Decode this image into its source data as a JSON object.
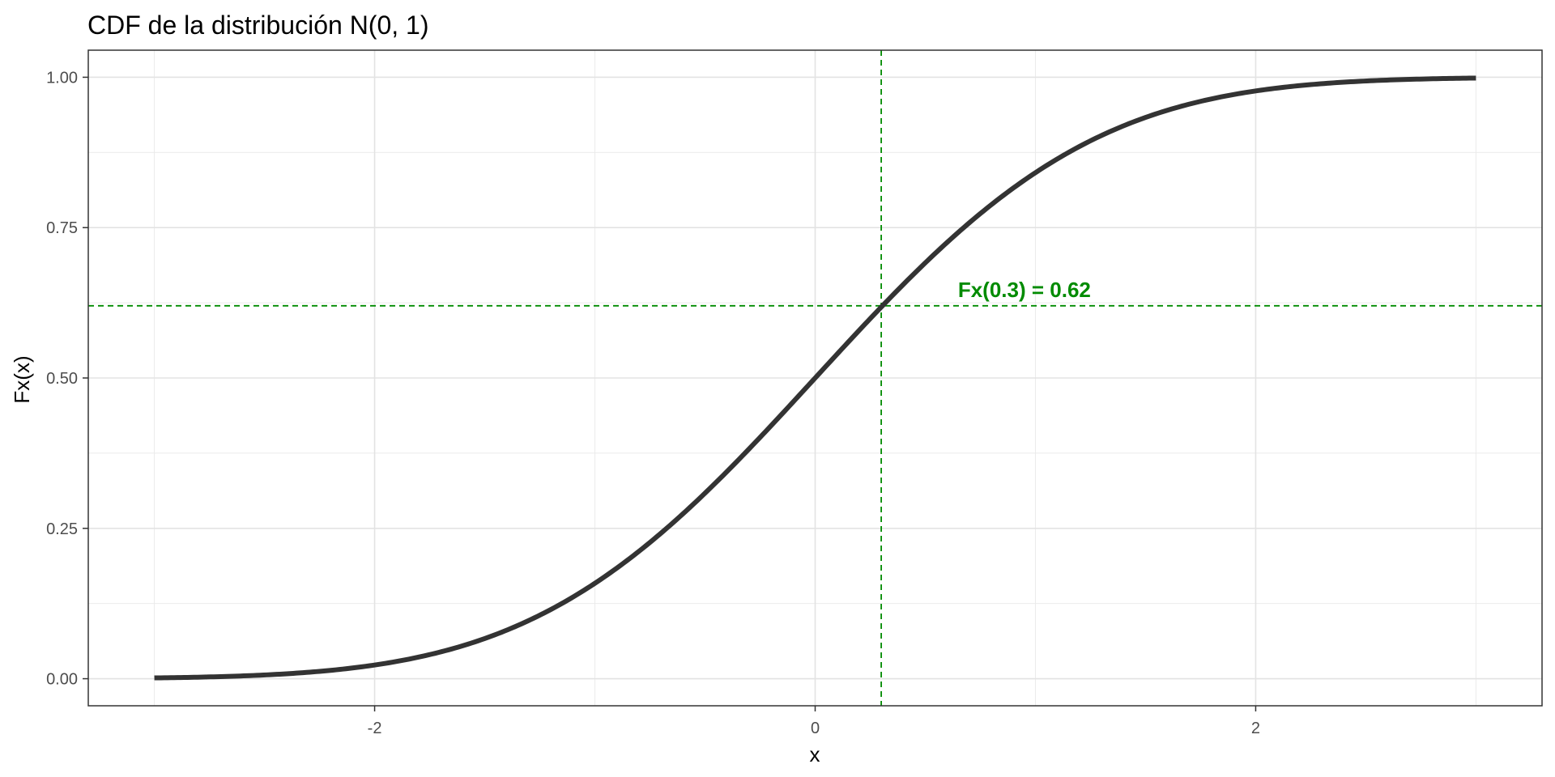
{
  "chart_data": {
    "type": "line",
    "title": "CDF de la distribución N(0, 1)",
    "xlabel": "x",
    "ylabel": "Fx(x)",
    "xlim": [
      -3.3,
      3.3
    ],
    "ylim": [
      -0.045,
      1.045
    ],
    "x_ticks": [
      -2,
      0,
      2
    ],
    "x_tick_labels": [
      "-2",
      "0",
      "2"
    ],
    "y_ticks": [
      0,
      0.25,
      0.5,
      0.75,
      1
    ],
    "y_tick_labels": [
      "0.00",
      "0.25",
      "0.50",
      "0.75",
      "1.00"
    ],
    "x_minor_ticks": [
      -3,
      -1,
      1,
      3
    ],
    "y_minor_ticks": [
      0.125,
      0.375,
      0.625,
      0.875
    ],
    "grid": true,
    "legend": "none",
    "series": [
      {
        "x": [
          -3.0,
          -2.75,
          -2.5,
          -2.25,
          -2.0,
          -1.75,
          -1.5,
          -1.25,
          -1.0,
          -0.75,
          -0.5,
          -0.25,
          0.0,
          0.25,
          0.5,
          0.75,
          1.0,
          1.25,
          1.5,
          1.75,
          2.0,
          2.25,
          2.5,
          2.75,
          3.0
        ],
        "y": [
          0.0013,
          0.003,
          0.0062,
          0.0122,
          0.0228,
          0.0401,
          0.0668,
          0.1056,
          0.1587,
          0.2266,
          0.3085,
          0.4013,
          0.5,
          0.5987,
          0.6915,
          0.7734,
          0.8413,
          0.8944,
          0.9332,
          0.9599,
          0.9772,
          0.9878,
          0.9938,
          0.997,
          0.9987
        ],
        "color": "#333333"
      }
    ],
    "reference_lines": {
      "x": 0.3,
      "y": 0.62,
      "color": "#008b00"
    },
    "annotation": {
      "text": "Fx(0.3) = 0.62",
      "x": 0.95,
      "y": 0.645,
      "color": "#008b00"
    }
  }
}
